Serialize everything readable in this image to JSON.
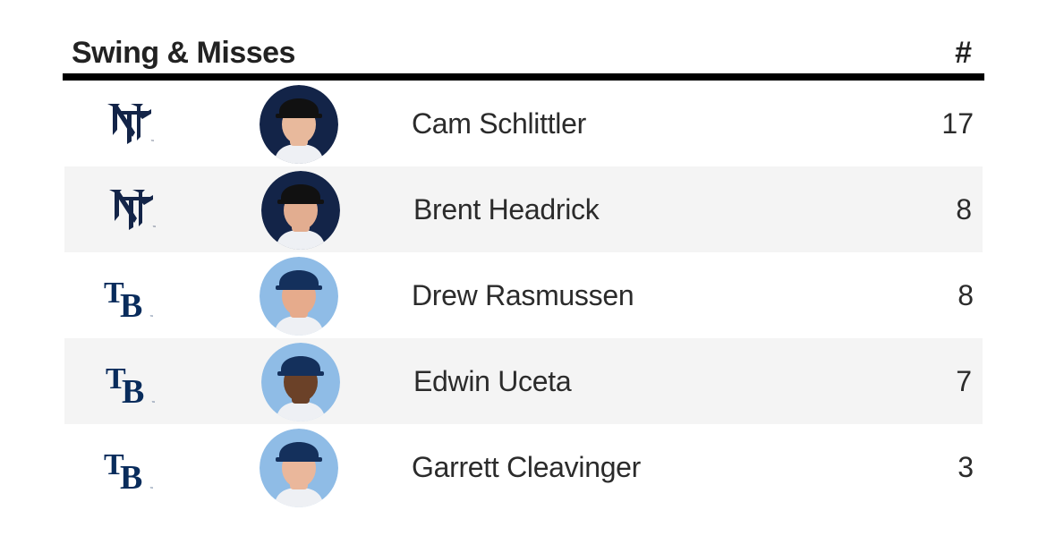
{
  "header": {
    "title": "Swing & Misses",
    "count_label": "#"
  },
  "colors": {
    "yankees_navy": "#132448",
    "rays_navy": "#092c5c",
    "rays_light_blue": "#8fbce6",
    "alt_row": "#f4f4f4"
  },
  "rows": [
    {
      "team_logo": "yankees-logo-icon",
      "player": "Cam Schlittler",
      "count": "17",
      "avatar_bg": "#132448",
      "cap": "#111111",
      "skin": "#e8b99c"
    },
    {
      "team_logo": "yankees-logo-icon",
      "player": "Brent Headrick",
      "count": "8",
      "avatar_bg": "#132448",
      "cap": "#111111",
      "skin": "#e2ad90"
    },
    {
      "team_logo": "rays-logo-icon",
      "player": "Drew Rasmussen",
      "count": "8",
      "avatar_bg": "#8fbce6",
      "cap": "#14305c",
      "skin": "#e6ab8c"
    },
    {
      "team_logo": "rays-logo-icon",
      "player": "Edwin Uceta",
      "count": "7",
      "avatar_bg": "#8fbce6",
      "cap": "#14305c",
      "skin": "#6b4128"
    },
    {
      "team_logo": "rays-logo-icon",
      "player": "Garrett Cleavinger",
      "count": "3",
      "avatar_bg": "#8fbce6",
      "cap": "#14305c",
      "skin": "#eab79b"
    }
  ]
}
